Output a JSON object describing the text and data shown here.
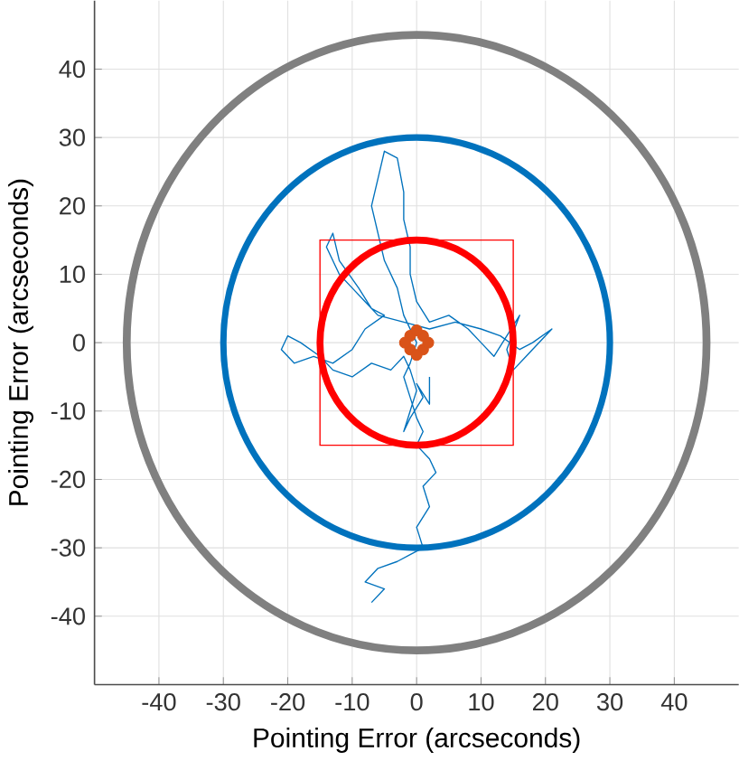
{
  "chart_data": {
    "type": "line",
    "xlabel": "Pointing Error (arcseconds)",
    "ylabel": "Pointing Error (arcseconds)",
    "xlim": [
      -50,
      50
    ],
    "ylim": [
      -50,
      50
    ],
    "xticks": [
      -40,
      -30,
      -20,
      -10,
      0,
      10,
      20,
      30,
      40
    ],
    "yticks": [
      -40,
      -30,
      -20,
      -10,
      0,
      10,
      20,
      30,
      40
    ],
    "grid": true,
    "line_style": "solid",
    "series": [
      {
        "color": "#0072bd",
        "x": [
          -7,
          -5,
          -8,
          -6,
          -3,
          -1,
          1,
          0,
          2,
          1,
          3,
          2,
          0,
          1,
          0,
          -1,
          -2,
          -1,
          0,
          -2,
          -3,
          -5,
          -6,
          -7,
          -6,
          -5,
          -3,
          -2,
          -2,
          -1,
          -1,
          0,
          2,
          5,
          8,
          10,
          12,
          14,
          16,
          14,
          15,
          17,
          20,
          21,
          18,
          16,
          13,
          10,
          6,
          2,
          -2,
          -6,
          -8,
          -10,
          -12,
          -14,
          -13,
          -12,
          -9,
          -7,
          -5,
          -8,
          -10,
          -13,
          -16,
          -19,
          -21,
          -20,
          -18,
          -15,
          -13,
          -10,
          -7,
          -4,
          -2,
          -1,
          0,
          -1,
          -2,
          -1,
          1,
          0,
          2,
          2
        ],
        "values": [
          -38,
          -36,
          -35,
          -33,
          -32,
          -31,
          -30,
          -27,
          -24,
          -21,
          -19,
          -17,
          -15,
          -13,
          -11,
          -8,
          -5,
          -3,
          0,
          4,
          8,
          12,
          16,
          20,
          24,
          28,
          27,
          22,
          18,
          14,
          10,
          6,
          3,
          4,
          2,
          0,
          -2,
          1,
          4,
          -1,
          -4,
          -2,
          1,
          2,
          0,
          -1,
          1,
          2,
          3,
          2,
          3,
          4,
          6,
          8,
          10,
          14,
          16,
          12,
          8,
          5,
          4,
          2,
          -1,
          -3,
          -2,
          -3,
          -1,
          1,
          0,
          -2,
          -4,
          -5,
          -3,
          -4,
          -2,
          -4,
          -7,
          -10,
          -13,
          -11,
          -8,
          -6,
          -9,
          -5
        ]
      },
      {
        "type": "scatter",
        "color": "#d95319",
        "x": [
          -1,
          1,
          -1,
          1,
          0,
          0,
          1.8,
          -1.8
        ],
        "values": [
          1,
          1,
          -1,
          -1,
          1.8,
          -1.8,
          0,
          0
        ]
      }
    ]
  }
}
